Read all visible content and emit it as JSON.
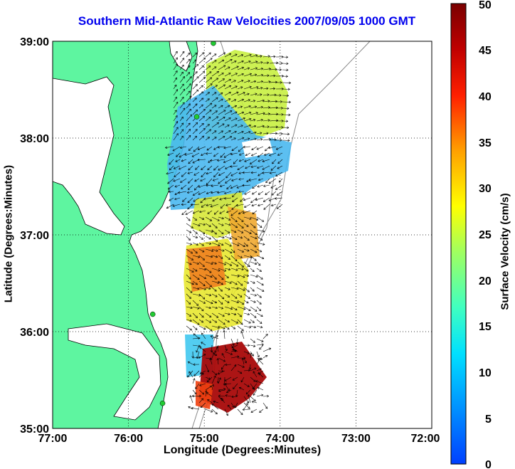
{
  "title": "Southern Mid-Atlantic Raw Velocities 2007/09/05 1000 GMT",
  "x_axis": {
    "label": "Longitude (Degrees:Minutes)",
    "ticks": [
      "77:00",
      "76:00",
      "75:00",
      "74:00",
      "73:00",
      "72:00"
    ]
  },
  "y_axis": {
    "label": "Latitude (Degrees:Minutes)",
    "ticks": [
      "39:00",
      "38:00",
      "37:00",
      "36:00",
      "35:00"
    ]
  },
  "colorbar": {
    "label": "Surface Velocity (cm/s)",
    "min": 0,
    "max": 50,
    "ticks": [
      "0",
      "5",
      "10",
      "15",
      "20",
      "25",
      "30",
      "35",
      "40",
      "45",
      "50"
    ]
  },
  "map_extent": {
    "lon_west": -77.0,
    "lon_east": -72.0,
    "lat_south": 35.0,
    "lat_north": 39.0
  },
  "grid": "dotted",
  "colors": {
    "land": "#5ef5a0",
    "title": "#0000ee",
    "radar_site": "#22cc33"
  },
  "radar_sites": [
    {
      "lon": -74.88,
      "lat": 38.98
    },
    {
      "lon": -75.1,
      "lat": 38.22
    },
    {
      "lon": -75.68,
      "lat": 36.18
    },
    {
      "lon": -75.55,
      "lat": 35.26
    }
  ]
}
